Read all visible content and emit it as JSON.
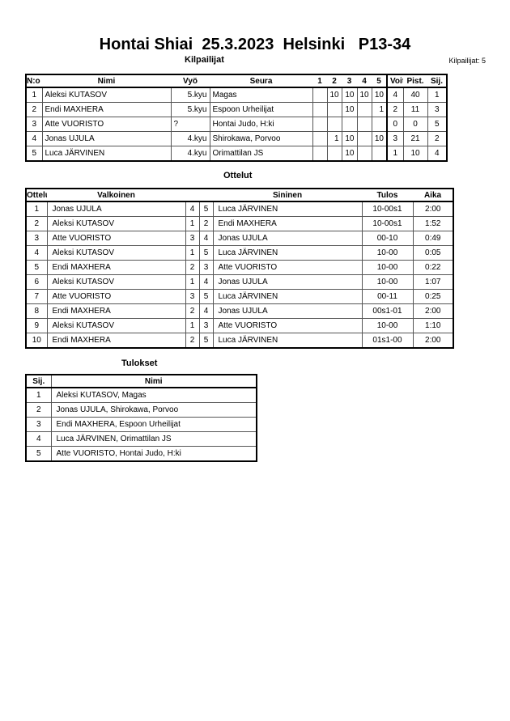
{
  "title": "Hontai Shiai  25.3.2023  Helsinki   P13-34",
  "competitors": {
    "heading": "Kilpailijat",
    "count_label": "Kilpailijat: 5",
    "columns": [
      "N:o",
      "Nimi",
      "Vyö",
      "Seura",
      "1",
      "2",
      "3",
      "4",
      "5",
      "Voit.",
      "Pist.",
      "Sij."
    ],
    "rows": [
      {
        "no": "1",
        "name": "Aleksi KUTASOV",
        "belt": "5.kyu",
        "club": "Magas",
        "s1": "",
        "s2": "10",
        "s3": "10",
        "s4": "10",
        "s5": "10",
        "wins": "4",
        "points": "40",
        "rank": "1"
      },
      {
        "no": "2",
        "name": "Endi MAXHERA",
        "belt": "5.kyu",
        "club": "Espoon Urheilijat",
        "s1": "",
        "s2": "",
        "s3": "10",
        "s4": "",
        "s5": "1",
        "wins": "2",
        "points": "11",
        "rank": "3"
      },
      {
        "no": "3",
        "name": "Atte VUORISTO",
        "belt": "?",
        "club": "Hontai Judo, H:ki",
        "s1": "",
        "s2": "",
        "s3": "",
        "s4": "",
        "s5": "",
        "wins": "0",
        "points": "0",
        "rank": "5"
      },
      {
        "no": "4",
        "name": "Jonas UJULA",
        "belt": "4.kyu",
        "club": "Shirokawa, Porvoo",
        "s1": "",
        "s2": "1",
        "s3": "10",
        "s4": "",
        "s5": "10",
        "wins": "3",
        "points": "21",
        "rank": "2"
      },
      {
        "no": "5",
        "name": "Luca JÄRVINEN",
        "belt": "4.kyu",
        "club": "Orimattilan JS",
        "s1": "",
        "s2": "",
        "s3": "10",
        "s4": "",
        "s5": "",
        "wins": "1",
        "points": "10",
        "rank": "4"
      }
    ]
  },
  "matches": {
    "heading": "Ottelut",
    "columns": [
      "Ottelu",
      "Valkoinen",
      "Sininen",
      "Tulos",
      "Aika"
    ],
    "rows": [
      {
        "no": "1",
        "white": "Jonas UJULA",
        "wn": "4",
        "bn": "5",
        "blue": "Luca JÄRVINEN",
        "result": "10-00s1",
        "time": "2:00"
      },
      {
        "no": "2",
        "white": "Aleksi KUTASOV",
        "wn": "1",
        "bn": "2",
        "blue": "Endi MAXHERA",
        "result": "10-00s1",
        "time": "1:52"
      },
      {
        "no": "3",
        "white": "Atte VUORISTO",
        "wn": "3",
        "bn": "4",
        "blue": "Jonas UJULA",
        "result": "00-10",
        "time": "0:49"
      },
      {
        "no": "4",
        "white": "Aleksi KUTASOV",
        "wn": "1",
        "bn": "5",
        "blue": "Luca JÄRVINEN",
        "result": "10-00",
        "time": "0:05"
      },
      {
        "no": "5",
        "white": "Endi MAXHERA",
        "wn": "2",
        "bn": "3",
        "blue": "Atte VUORISTO",
        "result": "10-00",
        "time": "0:22"
      },
      {
        "no": "6",
        "white": "Aleksi KUTASOV",
        "wn": "1",
        "bn": "4",
        "blue": "Jonas UJULA",
        "result": "10-00",
        "time": "1:07"
      },
      {
        "no": "7",
        "white": "Atte VUORISTO",
        "wn": "3",
        "bn": "5",
        "blue": "Luca JÄRVINEN",
        "result": "00-11",
        "time": "0:25"
      },
      {
        "no": "8",
        "white": "Endi MAXHERA",
        "wn": "2",
        "bn": "4",
        "blue": "Jonas UJULA",
        "result": "00s1-01",
        "time": "2:00"
      },
      {
        "no": "9",
        "white": "Aleksi KUTASOV",
        "wn": "1",
        "bn": "3",
        "blue": "Atte VUORISTO",
        "result": "10-00",
        "time": "1:10"
      },
      {
        "no": "10",
        "white": "Endi MAXHERA",
        "wn": "2",
        "bn": "5",
        "blue": "Luca JÄRVINEN",
        "result": "01s1-00",
        "time": "2:00"
      }
    ]
  },
  "results": {
    "heading": "Tulokset",
    "columns": [
      "Sij.",
      "Nimi"
    ],
    "rows": [
      {
        "rank": "1",
        "name": "Aleksi KUTASOV, Magas"
      },
      {
        "rank": "2",
        "name": "Jonas UJULA, Shirokawa, Porvoo"
      },
      {
        "rank": "3",
        "name": "Endi MAXHERA, Espoon Urheilijat"
      },
      {
        "rank": "4",
        "name": "Luca JÄRVINEN, Orimattilan JS"
      },
      {
        "rank": "5",
        "name": "Atte VUORISTO, Hontai Judo, H:ki"
      }
    ]
  }
}
